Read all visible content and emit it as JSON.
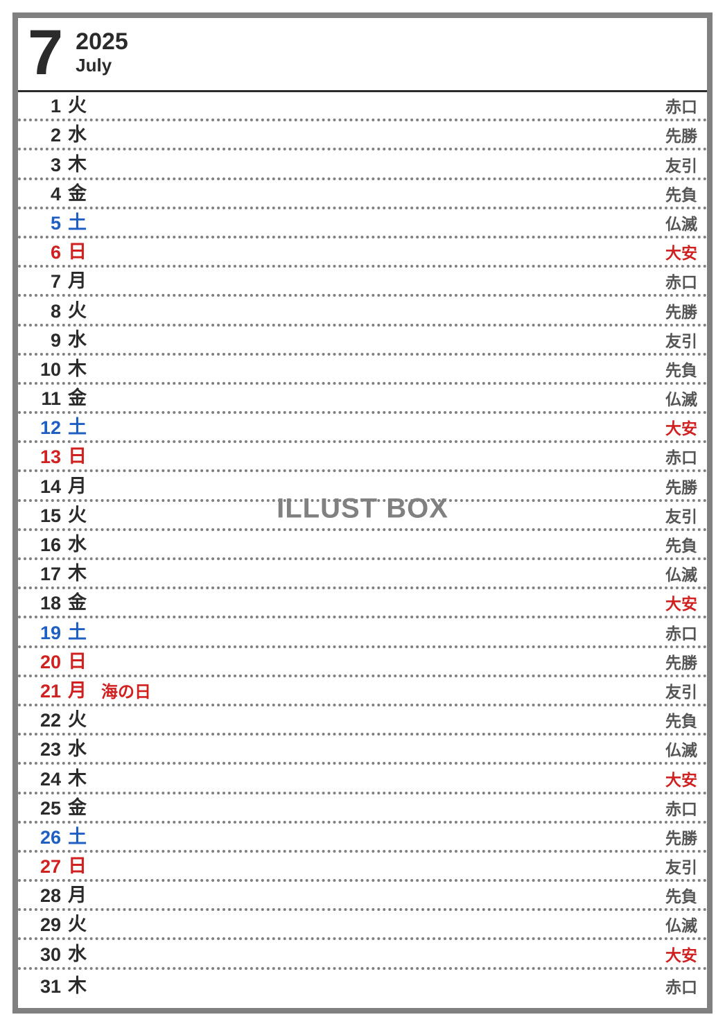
{
  "header": {
    "month_num": "7",
    "year": "2025",
    "month_en": "July"
  },
  "watermark": "ILLUST BOX",
  "colors": {
    "border": "#808080",
    "text": "#2b2b2b",
    "saturday": "#1f5fc4",
    "sunday": "#d02020",
    "rokuyo_red": "#d02020",
    "rokuyo_default": "#555555"
  },
  "days": [
    {
      "num": "1",
      "wday": "火",
      "color": "default",
      "holiday": "",
      "rokuyo": "赤口",
      "rokuyo_color": "default"
    },
    {
      "num": "2",
      "wday": "水",
      "color": "default",
      "holiday": "",
      "rokuyo": "先勝",
      "rokuyo_color": "default"
    },
    {
      "num": "3",
      "wday": "木",
      "color": "default",
      "holiday": "",
      "rokuyo": "友引",
      "rokuyo_color": "default"
    },
    {
      "num": "4",
      "wday": "金",
      "color": "default",
      "holiday": "",
      "rokuyo": "先負",
      "rokuyo_color": "default"
    },
    {
      "num": "5",
      "wday": "土",
      "color": "sat",
      "holiday": "",
      "rokuyo": "仏滅",
      "rokuyo_color": "default"
    },
    {
      "num": "6",
      "wday": "日",
      "color": "sun",
      "holiday": "",
      "rokuyo": "大安",
      "rokuyo_color": "red"
    },
    {
      "num": "7",
      "wday": "月",
      "color": "default",
      "holiday": "",
      "rokuyo": "赤口",
      "rokuyo_color": "default"
    },
    {
      "num": "8",
      "wday": "火",
      "color": "default",
      "holiday": "",
      "rokuyo": "先勝",
      "rokuyo_color": "default"
    },
    {
      "num": "9",
      "wday": "水",
      "color": "default",
      "holiday": "",
      "rokuyo": "友引",
      "rokuyo_color": "default"
    },
    {
      "num": "10",
      "wday": "木",
      "color": "default",
      "holiday": "",
      "rokuyo": "先負",
      "rokuyo_color": "default"
    },
    {
      "num": "11",
      "wday": "金",
      "color": "default",
      "holiday": "",
      "rokuyo": "仏滅",
      "rokuyo_color": "default"
    },
    {
      "num": "12",
      "wday": "土",
      "color": "sat",
      "holiday": "",
      "rokuyo": "大安",
      "rokuyo_color": "red"
    },
    {
      "num": "13",
      "wday": "日",
      "color": "sun",
      "holiday": "",
      "rokuyo": "赤口",
      "rokuyo_color": "default"
    },
    {
      "num": "14",
      "wday": "月",
      "color": "default",
      "holiday": "",
      "rokuyo": "先勝",
      "rokuyo_color": "default"
    },
    {
      "num": "15",
      "wday": "火",
      "color": "default",
      "holiday": "",
      "rokuyo": "友引",
      "rokuyo_color": "default"
    },
    {
      "num": "16",
      "wday": "水",
      "color": "default",
      "holiday": "",
      "rokuyo": "先負",
      "rokuyo_color": "default"
    },
    {
      "num": "17",
      "wday": "木",
      "color": "default",
      "holiday": "",
      "rokuyo": "仏滅",
      "rokuyo_color": "default"
    },
    {
      "num": "18",
      "wday": "金",
      "color": "default",
      "holiday": "",
      "rokuyo": "大安",
      "rokuyo_color": "red"
    },
    {
      "num": "19",
      "wday": "土",
      "color": "sat",
      "holiday": "",
      "rokuyo": "赤口",
      "rokuyo_color": "default"
    },
    {
      "num": "20",
      "wday": "日",
      "color": "sun",
      "holiday": "",
      "rokuyo": "先勝",
      "rokuyo_color": "default"
    },
    {
      "num": "21",
      "wday": "月",
      "color": "hol",
      "holiday": "海の日",
      "rokuyo": "友引",
      "rokuyo_color": "default"
    },
    {
      "num": "22",
      "wday": "火",
      "color": "default",
      "holiday": "",
      "rokuyo": "先負",
      "rokuyo_color": "default"
    },
    {
      "num": "23",
      "wday": "水",
      "color": "default",
      "holiday": "",
      "rokuyo": "仏滅",
      "rokuyo_color": "default"
    },
    {
      "num": "24",
      "wday": "木",
      "color": "default",
      "holiday": "",
      "rokuyo": "大安",
      "rokuyo_color": "red"
    },
    {
      "num": "25",
      "wday": "金",
      "color": "default",
      "holiday": "",
      "rokuyo": "赤口",
      "rokuyo_color": "default"
    },
    {
      "num": "26",
      "wday": "土",
      "color": "sat",
      "holiday": "",
      "rokuyo": "先勝",
      "rokuyo_color": "default"
    },
    {
      "num": "27",
      "wday": "日",
      "color": "sun",
      "holiday": "",
      "rokuyo": "友引",
      "rokuyo_color": "default"
    },
    {
      "num": "28",
      "wday": "月",
      "color": "default",
      "holiday": "",
      "rokuyo": "先負",
      "rokuyo_color": "default"
    },
    {
      "num": "29",
      "wday": "火",
      "color": "default",
      "holiday": "",
      "rokuyo": "仏滅",
      "rokuyo_color": "default"
    },
    {
      "num": "30",
      "wday": "水",
      "color": "default",
      "holiday": "",
      "rokuyo": "大安",
      "rokuyo_color": "red"
    },
    {
      "num": "31",
      "wday": "木",
      "color": "default",
      "holiday": "",
      "rokuyo": "赤口",
      "rokuyo_color": "default"
    }
  ]
}
